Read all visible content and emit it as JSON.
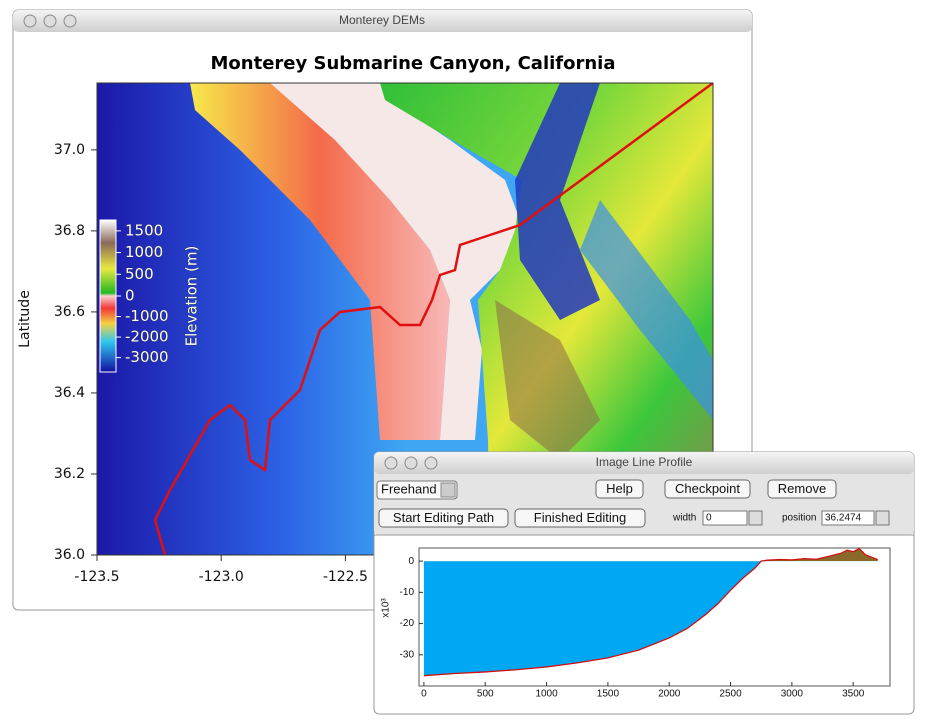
{
  "main_window": {
    "title": "Monterey DEMs",
    "chart": {
      "type": "image",
      "title": "Monterey Submarine Canyon, California",
      "y_label": "Latitude",
      "xlim": [
        -123.5,
        -121.02
      ],
      "xticks": [
        -123.5,
        {
          "value": -123,
          "label": "-123.0"
        },
        -122.5
      ],
      "ylim": [
        36,
        37.165
      ],
      "yticks": [
        {
          "value": 36,
          "label": "36.0"
        },
        36.2,
        36.4,
        36.6,
        36.8,
        {
          "value": 37,
          "label": "37.0"
        }
      ],
      "colorbar": {
        "label": "Elevation (m)",
        "clim": [
          -3700,
          1750
        ],
        "ticks": [
          1500,
          1000,
          500,
          0,
          -1000,
          -2000,
          -3000
        ]
      }
    }
  },
  "profile_window": {
    "title": "Image Line Profile",
    "mode": "Freehand",
    "buttons": [
      "Help",
      "Checkpoint",
      "Remove"
    ],
    "path_buttons": [
      "Start Editing Path",
      "Finished Editing"
    ],
    "width_label": "width",
    "width_value": "0",
    "position_label": "position",
    "position_value": "36.2474",
    "chart": {
      "type": "area",
      "y_label": "x10³",
      "x": [
        0,
        250,
        500,
        750,
        1000,
        1250,
        1500,
        1750,
        2000,
        2150,
        2300,
        2400,
        2500,
        2600,
        2700,
        2750,
        2800,
        2900,
        3000,
        3100,
        3200,
        3300,
        3400,
        3450,
        3500,
        3550,
        3600,
        3700
      ],
      "values": [
        -36.7,
        -36,
        -35.5,
        -34.8,
        -33.9,
        -32.6,
        -31,
        -28.5,
        -24.6,
        -21.5,
        -17,
        -13.5,
        -9.3,
        -5.5,
        -2.2,
        0,
        0.3,
        0.5,
        0.4,
        0.8,
        0.6,
        1.5,
        2.5,
        3.5,
        3.0,
        4.0,
        2.0,
        0.5
      ],
      "xlim": [
        -40,
        3800
      ],
      "xticks": [
        0,
        500,
        1000,
        1500,
        2000,
        2500,
        3000,
        3500
      ],
      "ylim": [
        -40,
        4.2
      ],
      "yticks": [
        0,
        -10,
        -20,
        -30
      ]
    }
  }
}
